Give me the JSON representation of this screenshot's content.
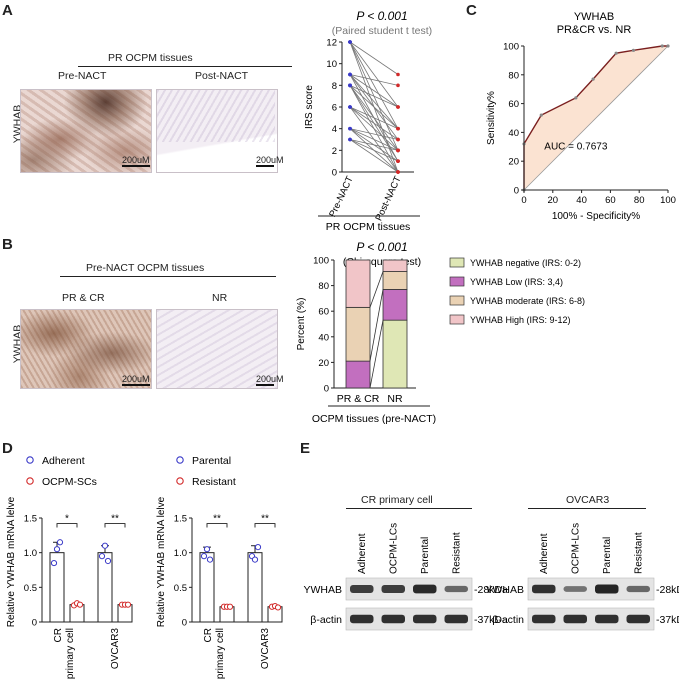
{
  "panels": {
    "a": "A",
    "b": "B",
    "c": "C",
    "d": "D",
    "e": "E"
  },
  "panel_a": {
    "header": "PR OCPM tissues",
    "col1": "Pre-NACT",
    "col2": "Post-NACT",
    "row_label": "YWHAB",
    "scale1": "200uM",
    "scale2": "200uM"
  },
  "panel_b": {
    "header": "Pre-NACT OCPM tissues",
    "col1": "PR & CR",
    "col2": "NR",
    "row_label": "YWHAB",
    "scale1": "200uM",
    "scale2": "200uM"
  },
  "panel_e": {
    "left_title": "CR primary cell",
    "right_title": "OVCAR3",
    "left_lanes": [
      "Adherent",
      "OCPM-LCs",
      "Parental",
      "Resistant"
    ],
    "right_lanes": [
      "Adherent",
      "OCPM-LCs",
      "Parental",
      "Resistant"
    ],
    "row1": "YWHAB",
    "row2": "β-actin",
    "mw1": "-28kDa",
    "mw2": "-37kDa",
    "ywhab_left": [
      0.8,
      0.8,
      0.95,
      0.45
    ],
    "actin_left": [
      0.9,
      0.9,
      0.9,
      0.9
    ],
    "ywhab_right": [
      0.9,
      0.35,
      1.0,
      0.45
    ],
    "actin_right": [
      0.9,
      0.9,
      0.9,
      0.9
    ]
  },
  "chart_data": [
    {
      "id": "A-paired",
      "type": "line",
      "title": "P < 0.001",
      "subtitle": "(Paired student t test)",
      "ylabel": "IRS score",
      "ylim": [
        0,
        12
      ],
      "yticks": [
        0,
        2,
        4,
        6,
        8,
        10,
        12
      ],
      "categories": [
        "Pre-NACT",
        "Post-NACT"
      ],
      "group_label": "PR OCPM tissues",
      "pairs": [
        [
          12,
          9
        ],
        [
          12,
          6
        ],
        [
          12,
          2
        ],
        [
          12,
          0
        ],
        [
          9,
          8
        ],
        [
          9,
          6
        ],
        [
          9,
          4
        ],
        [
          9,
          3
        ],
        [
          8,
          6
        ],
        [
          8,
          4
        ],
        [
          8,
          2
        ],
        [
          8,
          0
        ],
        [
          6,
          4
        ],
        [
          6,
          3
        ],
        [
          6,
          2
        ],
        [
          6,
          0
        ],
        [
          4,
          3
        ],
        [
          4,
          2
        ],
        [
          4,
          1
        ],
        [
          4,
          0
        ],
        [
          3,
          2
        ],
        [
          3,
          1
        ],
        [
          3,
          0
        ],
        [
          9,
          1
        ],
        [
          8,
          1
        ],
        [
          12,
          4
        ]
      ],
      "colors": {
        "pre": "#3b3bc8",
        "post": "#d22a2a",
        "line": "#777777"
      }
    },
    {
      "id": "B-stacked",
      "type": "bar",
      "title": "P < 0.001",
      "subtitle": "(Chi-square test)",
      "ylabel": "Percent (%)",
      "ylim": [
        0,
        100
      ],
      "yticks": [
        0,
        20,
        40,
        60,
        80,
        100
      ],
      "categories": [
        "PR & CR",
        "NR"
      ],
      "xgroup_label": "OCPM tissues (pre-NACT)",
      "series": [
        {
          "name": "YWHAB negative (IRS: 0-2)",
          "values": [
            0,
            53
          ],
          "color": "#dfe7b5"
        },
        {
          "name": "YWHAB Low (IRS: 3,4)",
          "values": [
            21,
            24
          ],
          "color": "#c26fbf"
        },
        {
          "name": "YWHAB moderate (IRS: 6-8)",
          "values": [
            42,
            14
          ],
          "color": "#ead2b4"
        },
        {
          "name": "YWHAB High (IRS: 9-12)",
          "values": [
            37,
            9
          ],
          "color": "#f1c5c8"
        }
      ]
    },
    {
      "id": "C-roc",
      "type": "line",
      "title": "YWHAB",
      "subtitle": "PR&CR vs. NR",
      "xlabel": "100% - Specificity%",
      "ylabel": "Sensitivity%",
      "xlim": [
        0,
        100
      ],
      "ylim": [
        0,
        100
      ],
      "ticks": [
        0,
        20,
        40,
        60,
        80,
        100
      ],
      "x": [
        0,
        0,
        12,
        36,
        48,
        64,
        76,
        96,
        100
      ],
      "y": [
        0,
        32,
        52,
        64,
        77,
        95,
        97,
        100,
        100
      ],
      "annotation": "AUC = 0.7673",
      "colors": {
        "line": "#7a1f1f",
        "fill": "#fbe3d2"
      }
    },
    {
      "id": "D-left",
      "type": "bar",
      "ylabel": "Relative YWHAB mRNA lelve",
      "ylim": [
        0,
        1.5
      ],
      "yticks": [
        0,
        0.5,
        1.0,
        1.5
      ],
      "ytick_labels": [
        "0",
        "0.5",
        "1.0",
        "1.5"
      ],
      "categories": [
        "CR\nprimary cell",
        "OVCAR3"
      ],
      "series": [
        {
          "name": "Adherent",
          "values": [
            1.0,
            1.0
          ],
          "err": [
            0.15,
            0.1
          ],
          "points": [
            [
              0.85,
              1.05,
              1.15
            ],
            [
              0.95,
              1.1,
              0.88
            ]
          ],
          "color": "#3b3bc8"
        },
        {
          "name": "OCPM-SCs",
          "values": [
            0.25,
            0.25
          ],
          "err": [
            0.02,
            0.02
          ],
          "points": [
            [
              0.24,
              0.27,
              0.25
            ],
            [
              0.25,
              0.25,
              0.25
            ]
          ],
          "color": "#d22a2a"
        }
      ],
      "sig": [
        "*",
        "**"
      ]
    },
    {
      "id": "D-right",
      "type": "bar",
      "ylabel": "Relative YWHAB mRNA lelve",
      "ylim": [
        0,
        1.5
      ],
      "yticks": [
        0,
        0.5,
        1.0,
        1.5
      ],
      "ytick_labels": [
        "0",
        "0.5",
        "1.0",
        "1.5"
      ],
      "categories": [
        "CR\nprimary cell",
        "OVCAR3"
      ],
      "series": [
        {
          "name": "Parental",
          "values": [
            1.0,
            1.0
          ],
          "err": [
            0.08,
            0.1
          ],
          "points": [
            [
              0.95,
              1.05,
              0.9
            ],
            [
              0.95,
              0.9,
              1.08
            ]
          ],
          "color": "#3b3bc8"
        },
        {
          "name": "Resistant",
          "values": [
            0.22,
            0.22
          ],
          "err": [
            0.01,
            0.02
          ],
          "points": [
            [
              0.22,
              0.22,
              0.22
            ],
            [
              0.22,
              0.23,
              0.21
            ]
          ],
          "color": "#d22a2a"
        }
      ],
      "sig": [
        "**",
        "**"
      ]
    }
  ]
}
